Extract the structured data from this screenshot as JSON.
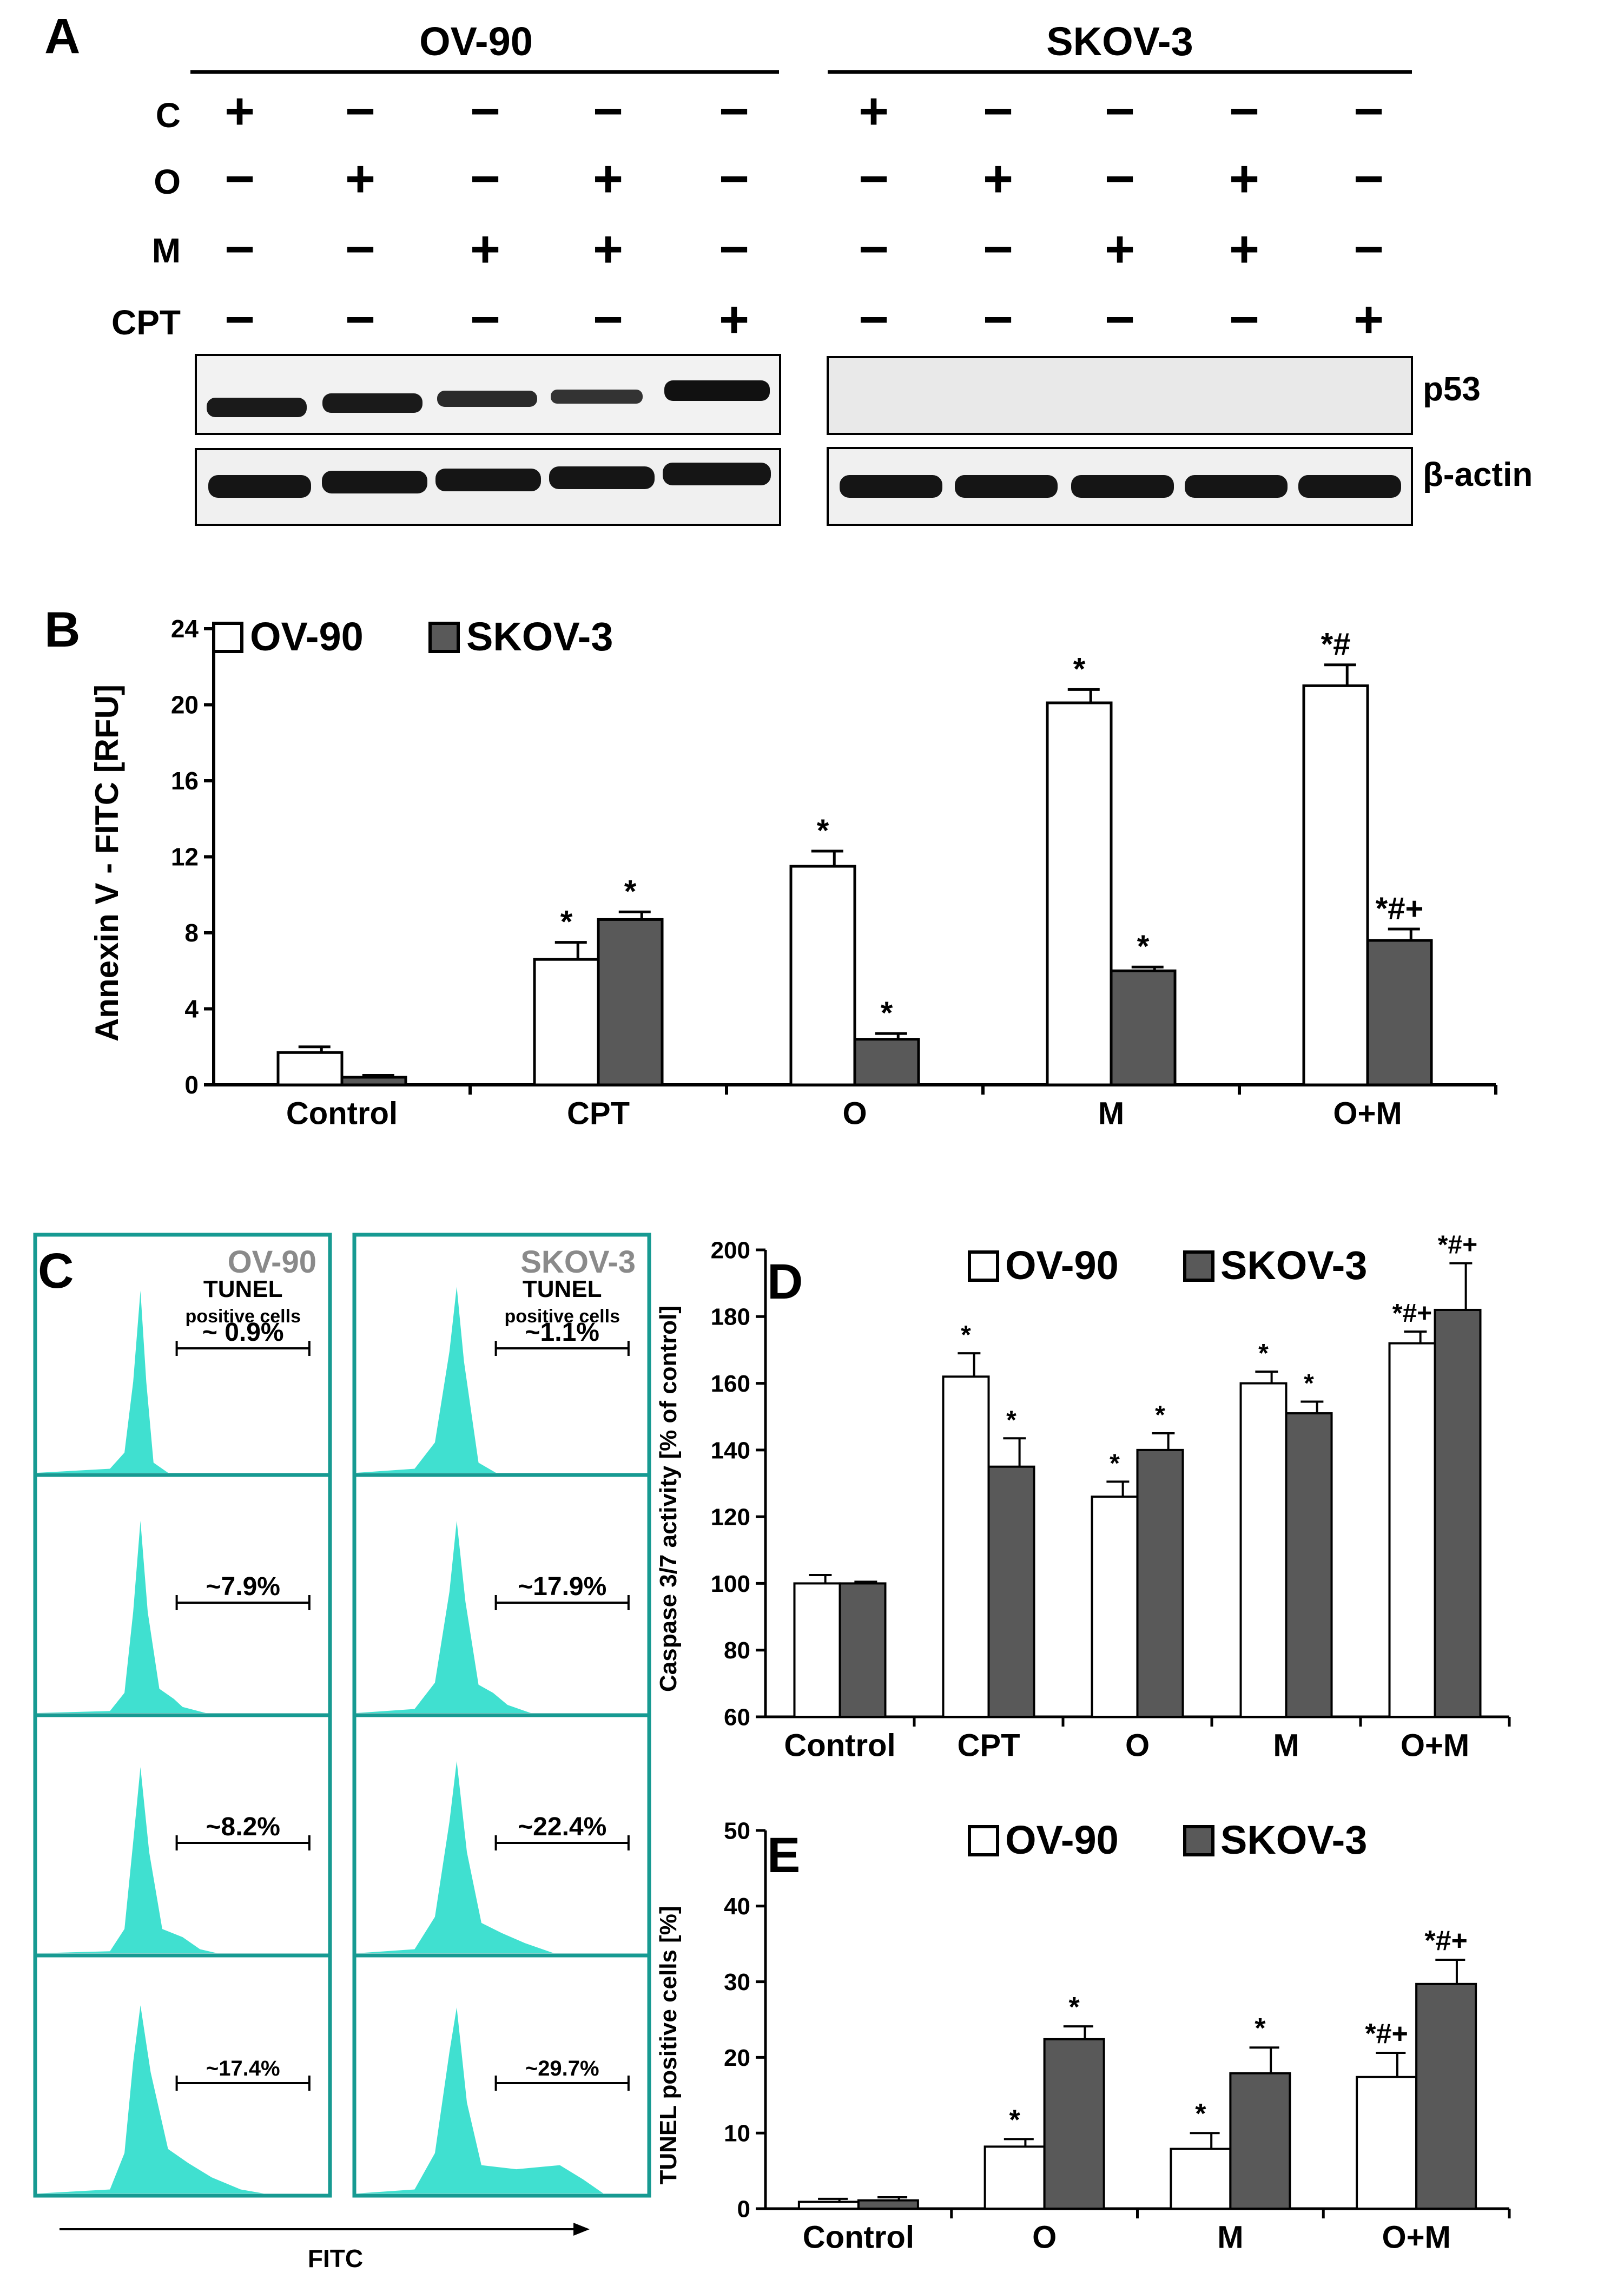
{
  "colors": {
    "ink": "#000000",
    "bar_ov90": "#ffffff",
    "bar_skov3": "#595959",
    "hist_fill": "#40e0d0",
    "hist_border": "#179a92",
    "panel_label_gray": "#8a8a8a",
    "blot_bg": "#f2f2f2"
  },
  "panelA": {
    "label": "A",
    "group_left": "OV-90",
    "group_right": "SKOV-3",
    "row_labels": [
      "C",
      "O",
      "M",
      "CPT"
    ],
    "signs": [
      [
        "+",
        "−",
        "−",
        "−",
        "−"
      ],
      [
        "−",
        "+",
        "−",
        "+",
        "−"
      ],
      [
        "−",
        "−",
        "+",
        "+",
        "−"
      ],
      [
        "−",
        "−",
        "−",
        "−",
        "+"
      ]
    ],
    "blot_labels": [
      "p53",
      "β-actin"
    ]
  },
  "panelB": {
    "label": "B",
    "ylabel": "Annexin V - FITC [RFU]",
    "ylim": [
      0,
      24
    ],
    "yticks": [
      0,
      4,
      8,
      12,
      16,
      20,
      24
    ],
    "legend": [
      "OV-90",
      "SKOV-3"
    ],
    "categories": [
      "Control",
      "CPT",
      "O",
      "M",
      "O+M"
    ]
  },
  "panelC": {
    "label": "C",
    "col_titles": [
      "OV-90",
      "SKOV-3"
    ],
    "tunel_title": "TUNEL",
    "tunel_subtitle": "positive cells",
    "percents_ov90": [
      "~ 0.9%",
      "~7.9%",
      "~8.2%",
      "~17.4%"
    ],
    "percents_skov3": [
      "~1.1%",
      "~17.9%",
      "~22.4%",
      "~29.7%"
    ],
    "xlabel": "FITC"
  },
  "panelD": {
    "label": "D",
    "ylabel": "Caspase 3/7 activity [% of control]",
    "ylim": [
      60,
      200
    ],
    "yticks": [
      60,
      80,
      100,
      120,
      140,
      160,
      180,
      200
    ],
    "legend": [
      "OV-90",
      "SKOV-3"
    ],
    "categories": [
      "Control",
      "CPT",
      "O",
      "M",
      "O+M"
    ]
  },
  "panelE": {
    "label": "E",
    "ylabel": "TUNEL positive cells [%]",
    "ylim": [
      0,
      50
    ],
    "yticks": [
      0,
      10,
      20,
      30,
      40,
      50
    ],
    "legend": [
      "OV-90",
      "SKOV-3"
    ],
    "categories": [
      "Control",
      "O",
      "M",
      "O+M"
    ]
  },
  "chart_data": [
    {
      "id": "B",
      "type": "bar",
      "title": "",
      "xlabel": "",
      "ylabel": "Annexin V - FITC [RFU]",
      "ylim": [
        0,
        24
      ],
      "categories": [
        "Control",
        "CPT",
        "O",
        "M",
        "O+M"
      ],
      "series": [
        {
          "name": "OV-90",
          "values": [
            1.7,
            6.6,
            11.5,
            20.1,
            21.0
          ],
          "errors": [
            0.3,
            0.9,
            0.8,
            0.7,
            1.1
          ],
          "annotations": [
            "",
            "*",
            "*",
            "*",
            "*#"
          ]
        },
        {
          "name": "SKOV-3",
          "values": [
            0.4,
            8.7,
            2.4,
            6.0,
            7.6
          ],
          "errors": [
            0.1,
            0.4,
            0.3,
            0.2,
            0.6
          ],
          "annotations": [
            "",
            "*",
            "*",
            "*",
            "*#+"
          ]
        }
      ]
    },
    {
      "id": "D",
      "type": "bar",
      "title": "",
      "xlabel": "",
      "ylabel": "Caspase 3/7 activity [% of control]",
      "ylim": [
        60,
        200
      ],
      "categories": [
        "Control",
        "CPT",
        "O",
        "M",
        "O+M"
      ],
      "series": [
        {
          "name": "OV-90",
          "values": [
            100,
            162,
            126,
            160,
            172
          ],
          "errors": [
            2.5,
            7,
            4.5,
            3.5,
            3.5
          ],
          "annotations": [
            "",
            "*",
            "*",
            "*",
            "*#+"
          ]
        },
        {
          "name": "SKOV-3",
          "values": [
            100,
            135,
            140,
            151,
            182
          ],
          "errors": [
            0.5,
            8.5,
            5,
            3.5,
            14
          ],
          "annotations": [
            "",
            "*",
            "*",
            "*",
            "*#+"
          ]
        }
      ]
    },
    {
      "id": "E",
      "type": "bar",
      "title": "",
      "xlabel": "",
      "ylabel": "TUNEL positive cells [%]",
      "ylim": [
        0,
        50
      ],
      "categories": [
        "Control",
        "O",
        "M",
        "O+M"
      ],
      "series": [
        {
          "name": "OV-90",
          "values": [
            0.9,
            8.2,
            7.9,
            17.4
          ],
          "errors": [
            0.4,
            1,
            2.1,
            3.2
          ],
          "annotations": [
            "",
            "*",
            "*",
            "*#+"
          ]
        },
        {
          "name": "SKOV-3",
          "values": [
            1.1,
            22.4,
            17.9,
            29.7
          ],
          "errors": [
            0.4,
            1.7,
            3.4,
            3.2
          ],
          "annotations": [
            "",
            "*",
            "*",
            "*#+"
          ]
        }
      ]
    }
  ]
}
